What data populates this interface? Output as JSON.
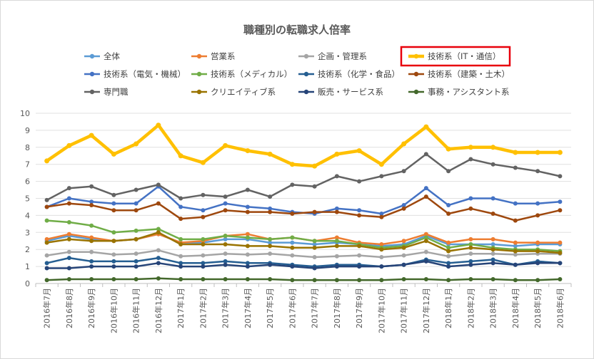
{
  "chart_data": {
    "type": "line",
    "title": "職種別の転職求人倍率",
    "xlabel": "",
    "ylabel": "",
    "ylim": [
      0,
      10
    ],
    "yticks": [
      0,
      1,
      2,
      3,
      4,
      5,
      6,
      7,
      8,
      9,
      10
    ],
    "grid": true,
    "legend_position": "top",
    "highlight_color": "#e8000b",
    "highlighted_series": "技術系（IT・通信）",
    "categories": [
      "2016年7月",
      "2016年8月",
      "2016年9月",
      "2016年10月",
      "2016年11月",
      "2016年12月",
      "2017年1月",
      "2017年2月",
      "2017年3月",
      "2017年4月",
      "2017年5月",
      "2017年6月",
      "2017年7月",
      "2017年8月",
      "2017年9月",
      "2017年10月",
      "2017年11月",
      "2017年12月",
      "2018年1月",
      "2018年2月",
      "2018年3月",
      "2018年4月",
      "2018年5月",
      "2018年6月"
    ],
    "series": [
      {
        "name": "全体",
        "color": "#5b9bd5",
        "values": [
          2.5,
          2.8,
          2.6,
          2.5,
          2.6,
          2.9,
          2.4,
          2.4,
          2.6,
          2.6,
          2.4,
          2.4,
          2.3,
          2.4,
          2.3,
          2.2,
          2.3,
          2.8,
          2.3,
          2.3,
          2.3,
          2.2,
          2.3,
          2.3
        ]
      },
      {
        "name": "営業系",
        "color": "#ed7d31",
        "values": [
          2.6,
          2.9,
          2.7,
          2.5,
          2.6,
          2.9,
          2.4,
          2.5,
          2.8,
          2.9,
          2.6,
          2.7,
          2.5,
          2.7,
          2.4,
          2.3,
          2.5,
          2.9,
          2.4,
          2.6,
          2.6,
          2.4,
          2.4,
          2.4
        ]
      },
      {
        "name": "企画・管理系",
        "color": "#a5a5a5",
        "values": [
          1.65,
          1.85,
          1.85,
          1.7,
          1.75,
          1.95,
          1.6,
          1.65,
          1.75,
          1.7,
          1.75,
          1.65,
          1.55,
          1.6,
          1.65,
          1.55,
          1.65,
          1.85,
          1.6,
          1.75,
          1.75,
          1.7,
          1.75,
          1.75
        ]
      },
      {
        "name": "技術系（IT・通信）",
        "color": "#ffc000",
        "values": [
          7.2,
          8.1,
          8.7,
          7.6,
          8.2,
          9.3,
          7.5,
          7.1,
          8.1,
          7.8,
          7.6,
          7.0,
          6.9,
          7.6,
          7.8,
          7.0,
          8.2,
          9.2,
          7.9,
          8.0,
          8.0,
          7.7,
          7.7,
          7.7
        ]
      },
      {
        "name": "技術系（電気・機械）",
        "color": "#4472c4",
        "values": [
          4.5,
          5.0,
          4.8,
          4.7,
          4.7,
          5.7,
          4.5,
          4.3,
          4.7,
          4.5,
          4.4,
          4.2,
          4.1,
          4.4,
          4.3,
          4.1,
          4.6,
          5.6,
          4.6,
          5.0,
          5.0,
          4.7,
          4.7,
          4.8
        ]
      },
      {
        "name": "技術系（メディカル）",
        "color": "#70ad47",
        "values": [
          3.7,
          3.6,
          3.4,
          3.0,
          3.1,
          3.2,
          2.6,
          2.6,
          2.8,
          2.7,
          2.6,
          2.7,
          2.5,
          2.5,
          2.3,
          2.1,
          2.2,
          2.7,
          2.1,
          2.3,
          2.1,
          2.0,
          2.0,
          1.9
        ]
      },
      {
        "name": "技術系（化学・食品）",
        "color": "#255e91",
        "values": [
          1.2,
          1.5,
          1.3,
          1.3,
          1.3,
          1.5,
          1.2,
          1.2,
          1.3,
          1.2,
          1.2,
          1.1,
          1.0,
          1.1,
          1.1,
          1.0,
          1.1,
          1.4,
          1.2,
          1.3,
          1.4,
          1.1,
          1.3,
          1.2
        ]
      },
      {
        "name": "技術系（建築・土木）",
        "color": "#9e480e",
        "values": [
          4.5,
          4.7,
          4.6,
          4.3,
          4.3,
          4.7,
          3.8,
          3.9,
          4.3,
          4.2,
          4.2,
          4.1,
          4.2,
          4.2,
          4.0,
          3.9,
          4.4,
          5.1,
          4.1,
          4.4,
          4.1,
          3.7,
          4.0,
          4.3
        ]
      },
      {
        "name": "専門職",
        "color": "#636363",
        "values": [
          4.9,
          5.6,
          5.7,
          5.2,
          5.5,
          5.8,
          5.0,
          5.2,
          5.1,
          5.5,
          5.1,
          5.8,
          5.7,
          6.3,
          6.0,
          6.3,
          6.6,
          7.6,
          6.6,
          7.3,
          7.0,
          6.8,
          6.6,
          6.3
        ]
      },
      {
        "name": "クリエイティブ系",
        "color": "#997300",
        "values": [
          2.4,
          2.6,
          2.5,
          2.5,
          2.6,
          3.0,
          2.3,
          2.3,
          2.3,
          2.2,
          2.2,
          2.1,
          2.1,
          2.2,
          2.2,
          2.0,
          2.1,
          2.5,
          1.9,
          2.1,
          2.0,
          1.9,
          1.9,
          1.8
        ]
      },
      {
        "name": "販売・サービス系",
        "color": "#264478",
        "values": [
          0.9,
          0.9,
          1.0,
          1.0,
          1.0,
          1.2,
          1.0,
          1.0,
          1.1,
          1.0,
          1.1,
          1.0,
          0.9,
          1.0,
          1.0,
          1.0,
          1.1,
          1.3,
          1.0,
          1.1,
          1.2,
          1.1,
          1.2,
          1.2
        ]
      },
      {
        "name": "事務・アシスタント系",
        "color": "#43682b",
        "values": [
          0.2,
          0.25,
          0.25,
          0.25,
          0.25,
          0.3,
          0.25,
          0.25,
          0.25,
          0.25,
          0.25,
          0.2,
          0.2,
          0.2,
          0.2,
          0.2,
          0.25,
          0.25,
          0.2,
          0.25,
          0.25,
          0.2,
          0.2,
          0.25
        ]
      }
    ]
  }
}
